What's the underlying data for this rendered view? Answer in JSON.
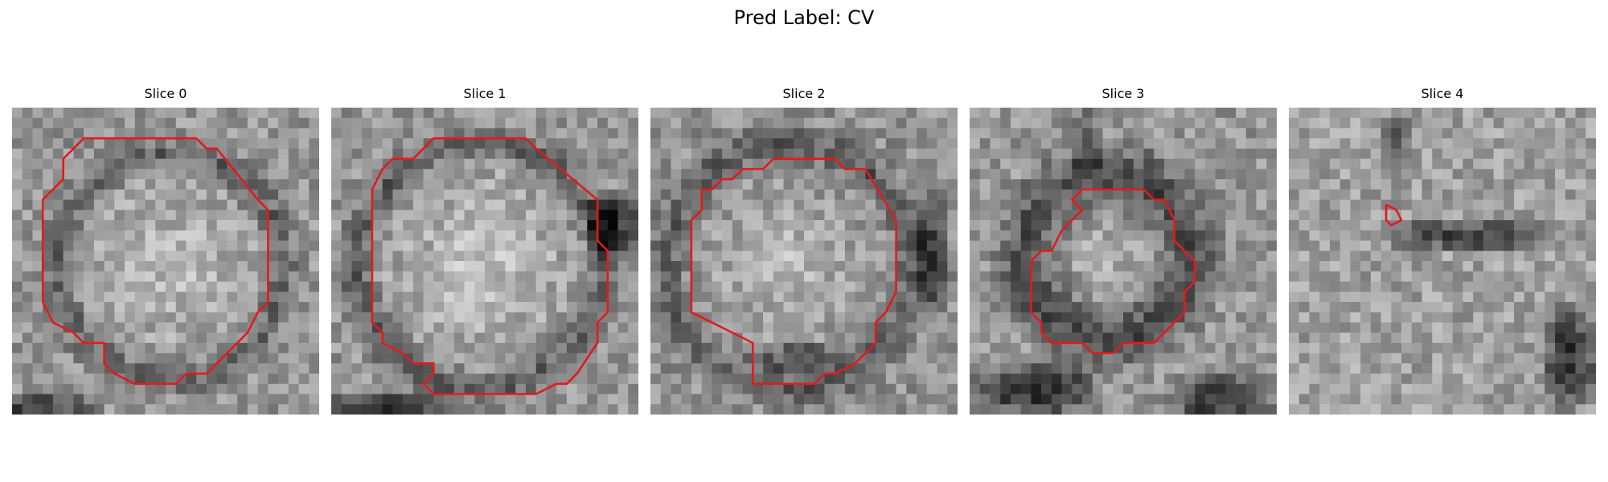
{
  "figure": {
    "title": "Pred Label: CV"
  },
  "panels": [
    {
      "title": "Slice 0"
    },
    {
      "title": "Slice 1"
    },
    {
      "title": "Slice 2"
    },
    {
      "title": "Slice 3"
    },
    {
      "title": "Slice 4"
    }
  ],
  "colors": {
    "contour": "#e31a1c",
    "background": "#ffffff"
  }
}
